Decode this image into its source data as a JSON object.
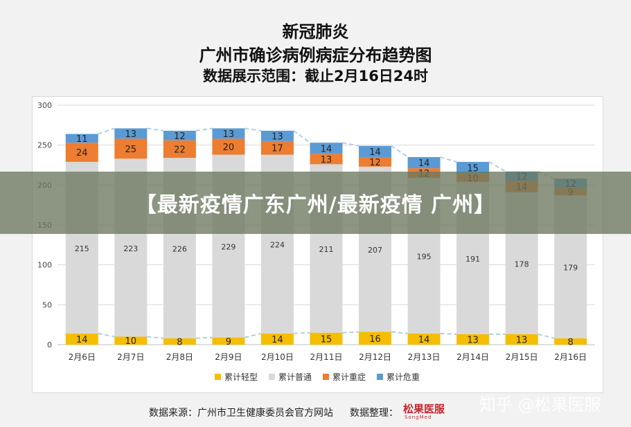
{
  "header": {
    "line1": "新冠肺炎",
    "line2": "广州市确诊病例病症分布趋势图",
    "line3": "数据展示范围：截止2月16日24时"
  },
  "overlay": {
    "text": "【最新疫情广东广州/最新疫情 广州】"
  },
  "footer": {
    "source": "数据来源：广州市卫生健康委员会官方网站",
    "organizer_label": "数据整理：",
    "logo_name": "松果医服",
    "logo_sub": "SongMed"
  },
  "watermark": "知乎 @松果医服",
  "colors": {
    "mild": "#f5be00",
    "common": "#d9d9d9",
    "severe": "#ed7d31",
    "critical": "#5b9bd5",
    "trend_line": "#aecde8"
  },
  "chart_data": {
    "type": "bar",
    "stacked": true,
    "categories": [
      "2月6日",
      "2月7日",
      "2月8日",
      "2月9日",
      "2月10日",
      "2月11日",
      "2月12日",
      "2月13日",
      "2月14日",
      "2月15日",
      "2月16日"
    ],
    "series": [
      {
        "name": "累计轻型",
        "color": "#f5be00",
        "values": [
          14,
          10,
          8,
          9,
          14,
          15,
          16,
          14,
          13,
          13,
          8
        ]
      },
      {
        "name": "累计普通",
        "color": "#d9d9d9",
        "values": [
          215,
          223,
          226,
          229,
          224,
          211,
          207,
          195,
          191,
          178,
          179
        ]
      },
      {
        "name": "累计重症",
        "color": "#ed7d31",
        "values": [
          24,
          25,
          22,
          20,
          17,
          13,
          12,
          12,
          10,
          14,
          9
        ]
      },
      {
        "name": "累计危重",
        "color": "#5b9bd5",
        "values": [
          11,
          13,
          12,
          13,
          13,
          14,
          14,
          14,
          15,
          12,
          12
        ]
      }
    ],
    "ylim": [
      0,
      300
    ],
    "yticks": [
      0,
      50,
      100,
      150,
      200,
      250,
      300
    ],
    "grid": true,
    "legend_position": "bottom"
  }
}
